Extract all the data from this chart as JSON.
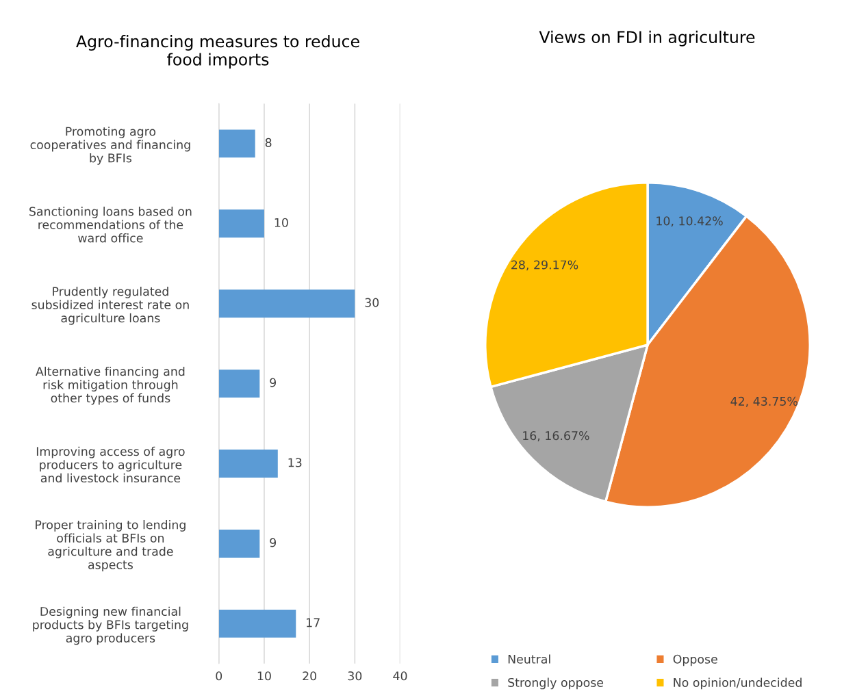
{
  "chart_data": [
    {
      "type": "bar",
      "orientation": "horizontal",
      "title": "Agro-financing measures to reduce\nfood imports",
      "categories": [
        "Promoting agro\ncooperatives and financing\nby BFIs",
        "Sanctioning loans based on\nrecommendations of the\nward office",
        "Prudently regulated\nsubsidized interest rate on\nagriculture loans",
        "Alternative financing and\nrisk mitigation through\nother types of funds",
        "Improving access of agro\nproducers to agriculture\nand livestock insurance",
        "Proper training to lending\nofficials at BFIs on\nagriculture and trade\naspects",
        "Designing new financial\nproducts by BFIs targeting\nagro producers"
      ],
      "values": [
        8,
        10,
        30,
        9,
        13,
        9,
        17
      ],
      "color": "#5b9bd5",
      "xlim": [
        0,
        40
      ],
      "xticks": [
        0,
        10,
        20,
        30,
        40
      ],
      "grid": "x",
      "data_labels": true
    },
    {
      "type": "pie",
      "title": "Views on FDI in agriculture",
      "categories": [
        "Neutral",
        "Oppose",
        "Strongly oppose",
        "No opinion/undecided"
      ],
      "values": [
        10,
        42,
        16,
        28
      ],
      "colors": [
        "#5b9bd5",
        "#ed7d31",
        "#a5a5a5",
        "#ffc000"
      ],
      "value_labels": [
        "10, 10.42%",
        "42, 43.75%",
        "16, 16.67%",
        "28, 29.17%"
      ],
      "legend": "bottom"
    }
  ]
}
